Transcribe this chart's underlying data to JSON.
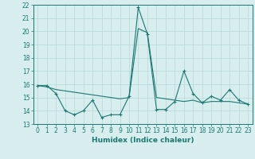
{
  "xlabel": "Humidex (Indice chaleur)",
  "ylabel": "",
  "x": [
    0,
    1,
    2,
    3,
    4,
    5,
    6,
    7,
    8,
    9,
    10,
    11,
    12,
    13,
    14,
    15,
    16,
    17,
    18,
    19,
    20,
    21,
    22,
    23
  ],
  "line1": [
    15.9,
    15.9,
    15.3,
    14.0,
    13.7,
    14.0,
    14.8,
    13.5,
    13.7,
    13.7,
    15.1,
    21.8,
    19.8,
    14.1,
    14.1,
    14.7,
    17.0,
    15.3,
    14.6,
    15.1,
    14.8,
    15.6,
    14.8,
    14.5
  ],
  "line2": [
    15.9,
    15.8,
    15.6,
    15.5,
    15.4,
    15.3,
    15.2,
    15.1,
    15.0,
    14.9,
    15.0,
    20.2,
    19.9,
    15.0,
    14.9,
    14.8,
    14.7,
    14.8,
    14.6,
    14.7,
    14.7,
    14.7,
    14.6,
    14.5
  ],
  "line_color": "#1a7870",
  "bg_color": "#d8eeee",
  "grid_color": "#b8d8d8",
  "ylim": [
    13,
    22
  ],
  "yticks": [
    13,
    14,
    15,
    16,
    17,
    18,
    19,
    20,
    21,
    22
  ],
  "xticks": [
    0,
    1,
    2,
    3,
    4,
    5,
    6,
    7,
    8,
    9,
    10,
    11,
    12,
    13,
    14,
    15,
    16,
    17,
    18,
    19,
    20,
    21,
    22,
    23
  ],
  "tick_fontsize": 5.5,
  "label_fontsize": 6.5
}
